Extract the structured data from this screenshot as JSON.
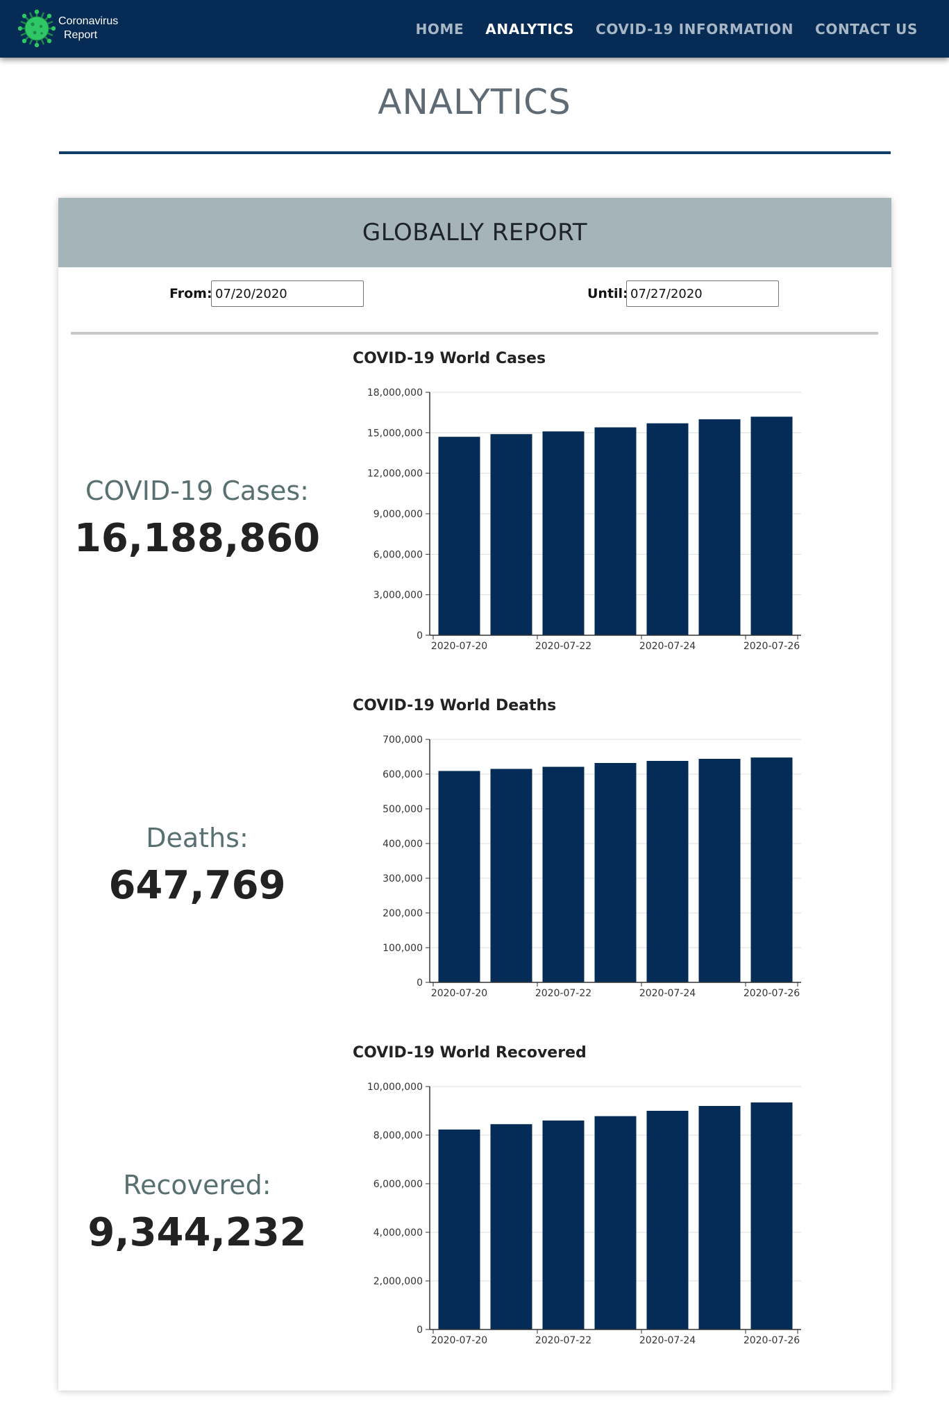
{
  "brand": {
    "line1": "Coronavirus",
    "line2": "Report"
  },
  "nav": [
    {
      "label": "HOME",
      "active": false
    },
    {
      "label": "ANALYTICS",
      "active": true
    },
    {
      "label": "COVID-19 INFORMATION",
      "active": false
    },
    {
      "label": "CONTACT US",
      "active": false
    }
  ],
  "page": {
    "title": "ANALYTICS"
  },
  "report": {
    "header": "GLOBALLY REPORT",
    "from_label": "From:",
    "from_value": "07/20/2020",
    "until_label": "Until:",
    "until_value": "07/27/2020"
  },
  "stats": [
    {
      "label": "COVID-19 Cases:",
      "value": "16,188,860"
    },
    {
      "label": "Deaths:",
      "value": "647,769"
    },
    {
      "label": "Recovered:",
      "value": "9,344,232"
    }
  ],
  "colors": {
    "navbar": "#062b54",
    "bar": "#052c56",
    "header_band": "#a5b4b8",
    "accent_rule": "#123c68"
  },
  "chart_data": [
    {
      "type": "bar",
      "title": "COVID-19 World Cases",
      "categories": [
        "2020-07-20",
        "2020-07-21",
        "2020-07-22",
        "2020-07-23",
        "2020-07-24",
        "2020-07-25",
        "2020-07-26"
      ],
      "values": [
        14700000,
        14900000,
        15100000,
        15400000,
        15700000,
        16000000,
        16188860
      ],
      "ylim": [
        0,
        18000000
      ],
      "yticks": [
        0,
        3000000,
        6000000,
        9000000,
        12000000,
        15000000,
        18000000
      ],
      "ytick_labels": [
        "0",
        "3,000,000",
        "6,000,000",
        "9,000,000",
        "12,000,000",
        "15,000,000",
        "18,000,000"
      ],
      "xtick_labels": [
        "2020-07-20",
        "2020-07-22",
        "2020-07-24",
        "2020-07-26"
      ],
      "grid": true
    },
    {
      "type": "bar",
      "title": "COVID-19 World Deaths",
      "categories": [
        "2020-07-20",
        "2020-07-21",
        "2020-07-22",
        "2020-07-23",
        "2020-07-24",
        "2020-07-25",
        "2020-07-26"
      ],
      "values": [
        609000,
        615000,
        621000,
        632000,
        638000,
        644000,
        647769
      ],
      "ylim": [
        0,
        700000
      ],
      "yticks": [
        0,
        100000,
        200000,
        300000,
        400000,
        500000,
        600000,
        700000
      ],
      "ytick_labels": [
        "0",
        "100,000",
        "200,000",
        "300,000",
        "400,000",
        "500,000",
        "600,000",
        "700,000"
      ],
      "xtick_labels": [
        "2020-07-20",
        "2020-07-22",
        "2020-07-24",
        "2020-07-26"
      ],
      "grid": true
    },
    {
      "type": "bar",
      "title": "COVID-19 World Recovered",
      "categories": [
        "2020-07-20",
        "2020-07-21",
        "2020-07-22",
        "2020-07-23",
        "2020-07-24",
        "2020-07-25",
        "2020-07-26"
      ],
      "values": [
        8230000,
        8450000,
        8600000,
        8780000,
        9000000,
        9200000,
        9344232
      ],
      "ylim": [
        0,
        10000000
      ],
      "yticks": [
        0,
        2000000,
        4000000,
        6000000,
        8000000,
        10000000
      ],
      "ytick_labels": [
        "0",
        "2,000,000",
        "4,000,000",
        "6,000,000",
        "8,000,000",
        "10,000,000"
      ],
      "xtick_labels": [
        "2020-07-20",
        "2020-07-22",
        "2020-07-24",
        "2020-07-26"
      ],
      "grid": true
    }
  ]
}
